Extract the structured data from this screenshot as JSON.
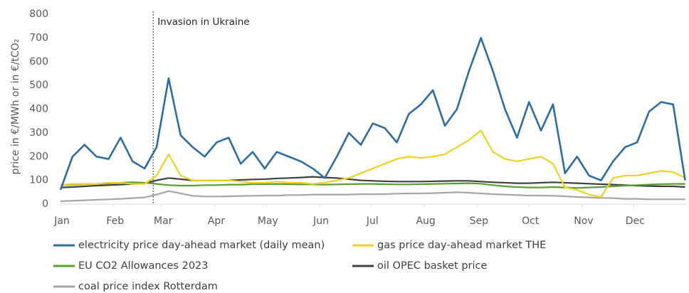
{
  "chart_data": {
    "type": "line",
    "y_label": "price in €/MWh or in €/tCO₂",
    "annotation": {
      "text": "Invasion in Ukraine",
      "x": 54
    },
    "xlim": [
      0,
      365
    ],
    "xticks": [
      {
        "value": 0,
        "label": "Jan"
      },
      {
        "value": 31,
        "label": "Feb"
      },
      {
        "value": 59,
        "label": "Mar"
      },
      {
        "value": 90,
        "label": "Apr"
      },
      {
        "value": 120,
        "label": "May"
      },
      {
        "value": 151,
        "label": "Jun"
      },
      {
        "value": 181,
        "label": "Jul"
      },
      {
        "value": 212,
        "label": "Aug"
      },
      {
        "value": 243,
        "label": "Sep"
      },
      {
        "value": 273,
        "label": "Oct"
      },
      {
        "value": 304,
        "label": "Nov"
      },
      {
        "value": 334,
        "label": "Dec"
      }
    ],
    "ylim": [
      0,
      800
    ],
    "yticks": [
      0,
      100,
      200,
      300,
      400,
      500,
      600,
      700,
      800
    ],
    "x": [
      0,
      7,
      14,
      21,
      28,
      35,
      42,
      49,
      56,
      63,
      70,
      77,
      84,
      91,
      98,
      105,
      112,
      119,
      126,
      133,
      140,
      147,
      154,
      161,
      168,
      175,
      182,
      189,
      196,
      203,
      210,
      217,
      224,
      231,
      238,
      245,
      252,
      259,
      266,
      273,
      280,
      287,
      294,
      301,
      308,
      315,
      322,
      329,
      336,
      343,
      350,
      357,
      364
    ],
    "series": [
      {
        "name": "electricity price day-ahead market (daily mean)",
        "color": "#2e6da4",
        "values": [
          60,
          200,
          250,
          200,
          190,
          280,
          180,
          150,
          240,
          530,
          290,
          240,
          200,
          260,
          280,
          170,
          220,
          150,
          220,
          200,
          180,
          150,
          110,
          200,
          300,
          250,
          340,
          320,
          260,
          380,
          420,
          480,
          330,
          400,
          560,
          700,
          560,
          400,
          280,
          430,
          310,
          420,
          130,
          200,
          120,
          100,
          180,
          240,
          260,
          390,
          430,
          420,
          100
        ]
      },
      {
        "name": "gas price day-ahead market THE",
        "color": "#f2d024",
        "values": [
          80,
          85,
          85,
          85,
          90,
          90,
          85,
          85,
          120,
          210,
          120,
          100,
          100,
          100,
          100,
          95,
          90,
          90,
          95,
          90,
          90,
          85,
          90,
          100,
          110,
          130,
          150,
          170,
          190,
          200,
          195,
          200,
          210,
          240,
          270,
          310,
          220,
          190,
          180,
          190,
          200,
          170,
          70,
          60,
          40,
          30,
          110,
          120,
          120,
          130,
          140,
          135,
          110
        ]
      },
      {
        "name": "EU CO2 Allowances 2023",
        "color": "#5a9e32",
        "values": [
          80,
          82,
          84,
          85,
          87,
          90,
          92,
          90,
          85,
          80,
          78,
          78,
          80,
          80,
          82,
          82,
          84,
          84,
          85,
          84,
          83,
          83,
          82,
          83,
          84,
          85,
          85,
          84,
          83,
          83,
          84,
          85,
          86,
          87,
          88,
          86,
          80,
          75,
          72,
          70,
          70,
          72,
          70,
          68,
          70,
          72,
          75,
          78,
          80,
          82,
          84,
          85,
          85
        ]
      },
      {
        "name": "oil OPEC basket price",
        "color": "#404040",
        "values": [
          70,
          72,
          75,
          78,
          80,
          82,
          85,
          88,
          100,
          110,
          105,
          100,
          100,
          100,
          100,
          102,
          104,
          105,
          108,
          110,
          112,
          115,
          112,
          110,
          105,
          100,
          98,
          96,
          95,
          95,
          95,
          96,
          97,
          98,
          98,
          95,
          92,
          90,
          88,
          88,
          90,
          92,
          90,
          88,
          86,
          84,
          82,
          80,
          78,
          76,
          75,
          75,
          72
        ]
      },
      {
        "name": "coal price index Rotterdam",
        "color": "#a6a6a6",
        "values": [
          12,
          14,
          16,
          18,
          20,
          22,
          25,
          28,
          40,
          55,
          45,
          35,
          32,
          32,
          33,
          34,
          35,
          36,
          36,
          38,
          38,
          40,
          40,
          40,
          40,
          42,
          42,
          42,
          44,
          45,
          45,
          46,
          48,
          50,
          48,
          45,
          42,
          40,
          38,
          36,
          36,
          35,
          33,
          30,
          28,
          26,
          25,
          22,
          22,
          20,
          20,
          20,
          20
        ]
      }
    ]
  }
}
